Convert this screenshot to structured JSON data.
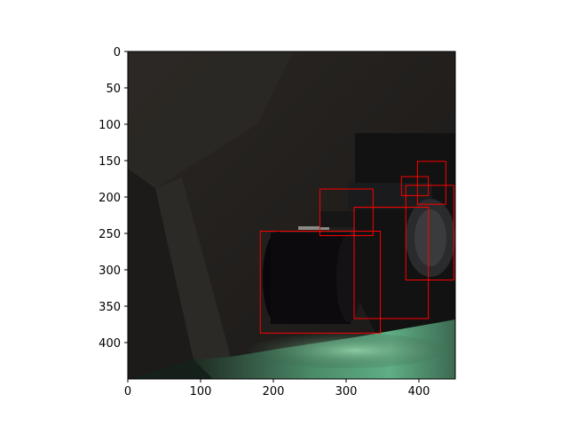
{
  "chart_data": {
    "type": "image_with_bounding_boxes",
    "title": "",
    "xlabel": "",
    "ylabel": "",
    "image": {
      "description_free": true,
      "width_units": 450,
      "height_units": 450
    },
    "xlim": [
      0,
      450
    ],
    "ylim": [
      450,
      0
    ],
    "x_ticks": [
      0,
      100,
      200,
      300,
      400
    ],
    "y_ticks": [
      0,
      50,
      100,
      150,
      200,
      250,
      300,
      350,
      400
    ],
    "box_color": "#ff0000",
    "boxes": [
      {
        "x0": 182,
        "y0": 247,
        "x1": 347,
        "y1": 387
      },
      {
        "x0": 264,
        "y0": 189,
        "x1": 337,
        "y1": 253
      },
      {
        "x0": 311,
        "y0": 214,
        "x1": 413,
        "y1": 367
      },
      {
        "x0": 382,
        "y0": 184,
        "x1": 448,
        "y1": 314
      },
      {
        "x0": 376,
        "y0": 172,
        "x1": 413,
        "y1": 198
      },
      {
        "x0": 398,
        "y0": 151,
        "x1": 437,
        "y1": 210
      }
    ]
  }
}
